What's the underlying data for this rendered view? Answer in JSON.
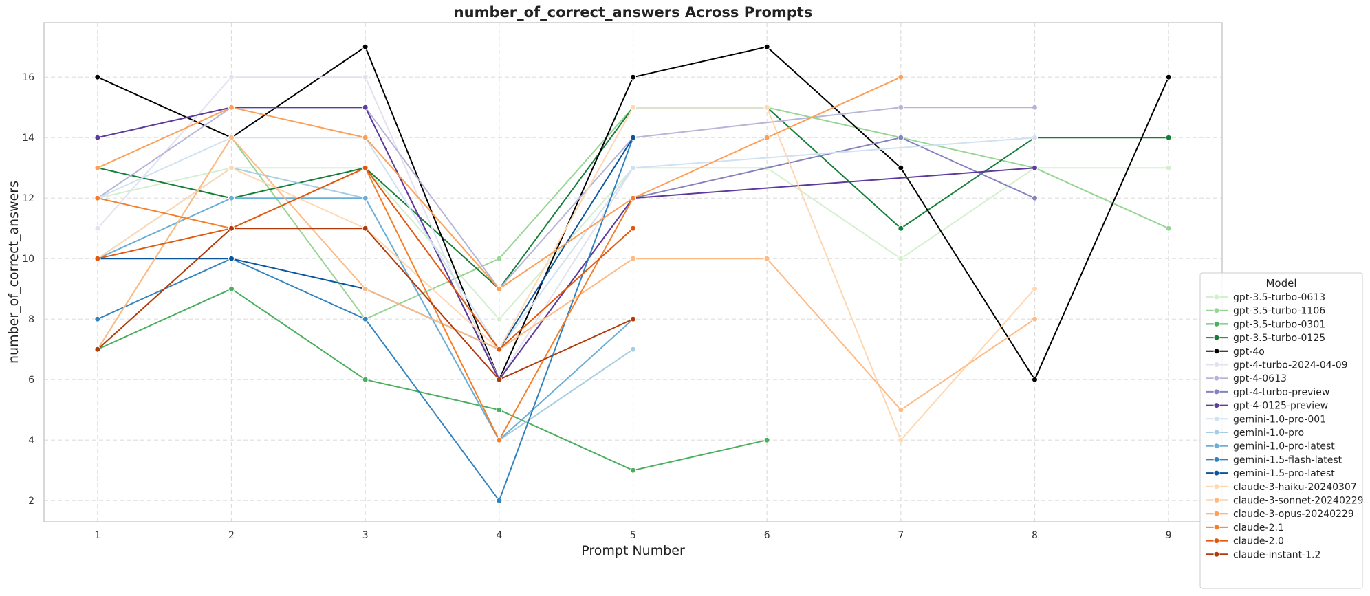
{
  "chart_data": {
    "type": "line",
    "title": "number_of_correct_answers Across Prompts",
    "xlabel": "Prompt Number",
    "ylabel": "number_of_correct_answers",
    "x_ticks": [
      1,
      2,
      3,
      4,
      5,
      6,
      7,
      8,
      9
    ],
    "y_ticks": [
      2,
      4,
      6,
      8,
      10,
      12,
      14,
      16
    ],
    "xlim": [
      0.6,
      9.4
    ],
    "ylim": [
      1.3,
      17.8
    ],
    "grid": true,
    "legend": {
      "title": "Model",
      "placement": "lower-right"
    },
    "series": [
      {
        "name": "gpt-3.5-turbo-0613",
        "color": "#d4efcd",
        "x": [
          1,
          2,
          3,
          4,
          5,
          6,
          7,
          8,
          9
        ],
        "y": [
          12,
          13,
          13,
          8,
          13,
          13,
          10,
          13,
          13
        ]
      },
      {
        "name": "gpt-3.5-turbo-1106",
        "color": "#98d594",
        "x": [
          1,
          2,
          3,
          4,
          5,
          6,
          7,
          8,
          9
        ],
        "y": [
          7,
          14,
          8,
          10,
          15,
          15,
          14,
          13,
          11
        ]
      },
      {
        "name": "gpt-3.5-turbo-0301",
        "color": "#4bae5e",
        "x": [
          1,
          2,
          3,
          4,
          5,
          6
        ],
        "y": [
          7,
          9,
          6,
          5,
          3,
          4
        ]
      },
      {
        "name": "gpt-3.5-turbo-0125",
        "color": "#157e3a",
        "x": [
          1,
          2,
          3,
          4,
          5,
          6,
          7,
          8,
          9
        ],
        "y": [
          13,
          12,
          13,
          9,
          15,
          15,
          11,
          14,
          14
        ]
      },
      {
        "name": "gpt-4o",
        "color": "#000000",
        "x": [
          1,
          2,
          3,
          4,
          5,
          6,
          7,
          8,
          9
        ],
        "y": [
          16,
          14,
          17,
          6,
          16,
          17,
          13,
          6,
          16
        ]
      },
      {
        "name": "gpt-4-turbo-2024-04-09",
        "color": "#e2e1ef",
        "x": [
          1,
          2,
          3,
          4,
          5
        ],
        "y": [
          11,
          16,
          16,
          6,
          13
        ]
      },
      {
        "name": "gpt-4-0613",
        "color": "#b6b5d8",
        "x": [
          1,
          2,
          3,
          4,
          5,
          7,
          8
        ],
        "y": [
          12,
          15,
          15,
          9,
          14,
          15,
          15
        ]
      },
      {
        "name": "gpt-4-turbo-preview",
        "color": "#8582bd",
        "x": [
          1,
          2,
          3,
          4,
          5,
          7,
          8
        ],
        "y": [
          14,
          15,
          15,
          6,
          12,
          14,
          12
        ]
      },
      {
        "name": "gpt-4-0125-preview",
        "color": "#5d3a9b",
        "x": [
          1,
          2,
          3,
          4,
          5,
          8
        ],
        "y": [
          14,
          15,
          15,
          6,
          12,
          13
        ]
      },
      {
        "name": "gemini-1.0-pro-001",
        "color": "#d0e1f2",
        "x": [
          1,
          2,
          3,
          4,
          5,
          8
        ],
        "y": [
          12,
          14,
          14,
          7,
          13,
          14
        ]
      },
      {
        "name": "gemini-1.0-pro",
        "color": "#a6cde2",
        "x": [
          1,
          2,
          3,
          4,
          5
        ],
        "y": [
          10,
          13,
          12,
          4,
          7
        ]
      },
      {
        "name": "gemini-1.0-pro-latest",
        "color": "#6baed6",
        "x": [
          1,
          2,
          3,
          4,
          5
        ],
        "y": [
          10,
          12,
          12,
          4,
          8
        ]
      },
      {
        "name": "gemini-1.5-flash-latest",
        "color": "#3282bd",
        "x": [
          1,
          2,
          3,
          4,
          5
        ],
        "y": [
          8,
          10,
          8,
          2,
          14
        ]
      },
      {
        "name": "gemini-1.5-pro-latest",
        "color": "#0b559f",
        "x": [
          1,
          2,
          3,
          4,
          5
        ],
        "y": [
          10,
          10,
          9,
          7,
          14
        ]
      },
      {
        "name": "claude-3-haiku-20240307",
        "color": "#fdd8b3",
        "x": [
          1,
          2,
          3,
          4,
          5,
          6,
          7,
          8
        ],
        "y": [
          10,
          13,
          11,
          7,
          15,
          15,
          4,
          9
        ]
      },
      {
        "name": "claude-3-sonnet-20240229",
        "color": "#fdba84",
        "x": [
          1,
          2,
          3,
          4,
          5,
          6,
          7,
          8
        ],
        "y": [
          7,
          14,
          9,
          7,
          10,
          10,
          5,
          8
        ]
      },
      {
        "name": "claude-3-opus-20240229",
        "color": "#fd9f56",
        "x": [
          1,
          2,
          3,
          4,
          5,
          6,
          7
        ],
        "y": [
          13,
          15,
          14,
          9,
          12,
          14,
          16
        ]
      },
      {
        "name": "claude-2.1",
        "color": "#f47f2a",
        "x": [
          1,
          2,
          3,
          4,
          5
        ],
        "y": [
          12,
          11,
          13,
          4,
          12
        ]
      },
      {
        "name": "claude-2.0",
        "color": "#e0570e",
        "x": [
          1,
          2,
          3,
          4,
          5
        ],
        "y": [
          10,
          11,
          13,
          7,
          11
        ]
      },
      {
        "name": "claude-instant-1.2",
        "color": "#b13a0b",
        "x": [
          1,
          2,
          3,
          4,
          5
        ],
        "y": [
          7,
          11,
          11,
          6,
          8
        ]
      }
    ]
  }
}
